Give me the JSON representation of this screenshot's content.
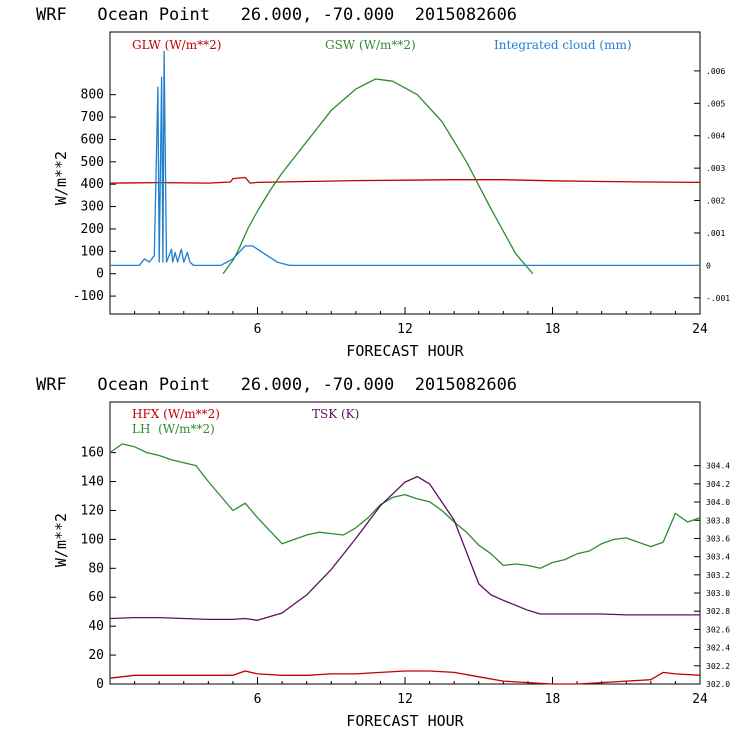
{
  "chart_data": [
    {
      "type": "line",
      "title": "WRF   Ocean Point   26.000, -70.000  2015082606",
      "xlabel": "FORECAST HOUR",
      "ylabel": "W/m**2",
      "xlim": [
        0,
        24
      ],
      "ylim": [
        -180,
        1080
      ],
      "x_ticks": [
        "6",
        "12",
        "18",
        "24"
      ],
      "y_ticks": [
        "-100",
        "0",
        "100",
        "200",
        "300",
        "400",
        "500",
        "600",
        "700",
        "800"
      ],
      "y2lim": [
        -0.0015,
        0.0072
      ],
      "y2_ticks": [
        "-.001",
        "0",
        ".001",
        ".002",
        ".003",
        ".004",
        ".005",
        ".006"
      ],
      "series": [
        {
          "name": "GLW (W/m**2)",
          "color": "#c00000",
          "axis": "left",
          "x": [
            0,
            2,
            4,
            4.9,
            5,
            5.5,
            5.7,
            6,
            8,
            10,
            12,
            14,
            16,
            18,
            20,
            22,
            24
          ],
          "y": [
            405,
            407,
            405,
            410,
            425,
            430,
            405,
            408,
            412,
            416,
            418,
            420,
            420,
            415,
            412,
            410,
            408
          ]
        },
        {
          "name": "GSW (W/m**2)",
          "color": "#2e8b2e",
          "axis": "left",
          "x": [
            4.6,
            5.0,
            5.2,
            5.6,
            6.0,
            6.5,
            7.0,
            8.0,
            9.0,
            10.0,
            10.8,
            11.5,
            12.5,
            13.5,
            14.5,
            15.5,
            16.5,
            17.2
          ],
          "y": [
            0,
            60,
            100,
            200,
            280,
            370,
            450,
            590,
            730,
            825,
            870,
            860,
            800,
            680,
            500,
            290,
            90,
            0
          ]
        },
        {
          "name": "Integrated cloud (mm)",
          "color": "#1f7fd0",
          "axis": "right",
          "x": [
            0,
            1.2,
            1.4,
            1.6,
            1.8,
            1.95,
            2.0,
            2.1,
            2.15,
            2.2,
            2.3,
            2.4,
            2.5,
            2.55,
            2.65,
            2.75,
            2.9,
            3.0,
            3.15,
            3.25,
            3.4,
            4.5,
            5.0,
            5.5,
            5.8,
            6.2,
            6.8,
            7.3,
            8.0,
            24
          ],
          "y": [
            0,
            0,
            0.0002,
            0.0001,
            0.0003,
            0.0055,
            0.0001,
            0.0058,
            0.0001,
            0.0066,
            0.0001,
            0.0003,
            0.0005,
            0.0001,
            0.0004,
            0.0001,
            0.0005,
            0.0001,
            0.0004,
            0.0001,
            0,
            0,
            0.0002,
            0.0006,
            0.0006,
            0.0004,
            0.0001,
            0,
            0,
            0
          ]
        }
      ]
    },
    {
      "type": "line",
      "title": "WRF   Ocean Point   26.000, -70.000  2015082606",
      "xlabel": "FORECAST HOUR",
      "ylabel": "W/m**2",
      "xlim": [
        0,
        24
      ],
      "ylim": [
        0,
        195
      ],
      "x_ticks": [
        "6",
        "12",
        "18",
        "24"
      ],
      "y_ticks": [
        "0",
        "20",
        "40",
        "60",
        "80",
        "100",
        "120",
        "140",
        "160"
      ],
      "y2lim": [
        302.0,
        305.1
      ],
      "y2_ticks": [
        "302.0",
        "302.2",
        "302.4",
        "302.6",
        "302.8",
        "303.0",
        "303.2",
        "303.4",
        "303.6",
        "303.8",
        "304.0",
        "304.2",
        "304.4"
      ],
      "series": [
        {
          "name": "HFX (W/m**2)",
          "color": "#c00000",
          "axis": "left",
          "x": [
            0,
            1,
            2,
            3,
            4,
            5,
            5.5,
            6,
            7,
            8,
            9,
            10,
            11,
            12,
            13,
            14,
            15,
            16,
            17,
            18,
            19,
            20,
            21,
            22,
            22.5,
            23,
            24
          ],
          "y": [
            4,
            6,
            6,
            6,
            6,
            6,
            9,
            7,
            6,
            6,
            7,
            7,
            8,
            9,
            9,
            8,
            5,
            2,
            1,
            0,
            0,
            1,
            2,
            3,
            8,
            7,
            6
          ]
        },
        {
          "name": "LH  (W/m**2)",
          "color": "#2e8b2e",
          "axis": "left",
          "x": [
            0,
            0.5,
            1,
            1.5,
            2,
            2.5,
            3,
            3.5,
            4,
            4.5,
            5,
            5.5,
            6,
            6.5,
            7,
            7.5,
            8,
            8.5,
            9,
            9.5,
            10,
            10.5,
            11,
            11.5,
            12,
            12.5,
            13,
            13.5,
            14,
            14.5,
            15,
            15.5,
            16,
            16.5,
            17,
            17.5,
            18,
            18.5,
            19,
            19.5,
            20,
            20.5,
            21,
            21.5,
            22,
            22.5,
            23,
            23.5,
            24
          ],
          "y": [
            160,
            166,
            164,
            160,
            158,
            155,
            153,
            151,
            140,
            130,
            120,
            125,
            115,
            106,
            97,
            100,
            103,
            105,
            104,
            103,
            108,
            115,
            124,
            129,
            131,
            128,
            126,
            120,
            112,
            105,
            96,
            90,
            82,
            83,
            82,
            80,
            84,
            86,
            90,
            92,
            97,
            100,
            101,
            98,
            95,
            98,
            118,
            112,
            115
          ]
        },
        {
          "name": "TSK (K)",
          "color": "#5a1060",
          "axis": "right",
          "x": [
            0,
            1,
            2,
            3,
            4,
            5,
            5.5,
            6,
            7,
            8,
            9,
            10,
            11,
            12,
            12.5,
            13,
            14,
            15,
            15.5,
            16,
            17,
            17.5,
            18,
            19,
            20,
            21,
            22,
            23,
            24
          ],
          "y": [
            302.72,
            302.73,
            302.73,
            302.72,
            302.71,
            302.71,
            302.72,
            302.7,
            302.78,
            302.98,
            303.26,
            303.6,
            303.96,
            304.22,
            304.28,
            304.2,
            303.8,
            303.1,
            302.98,
            302.92,
            302.81,
            302.77,
            302.77,
            302.77,
            302.77,
            302.76,
            302.76,
            302.76,
            302.76
          ]
        }
      ]
    }
  ]
}
